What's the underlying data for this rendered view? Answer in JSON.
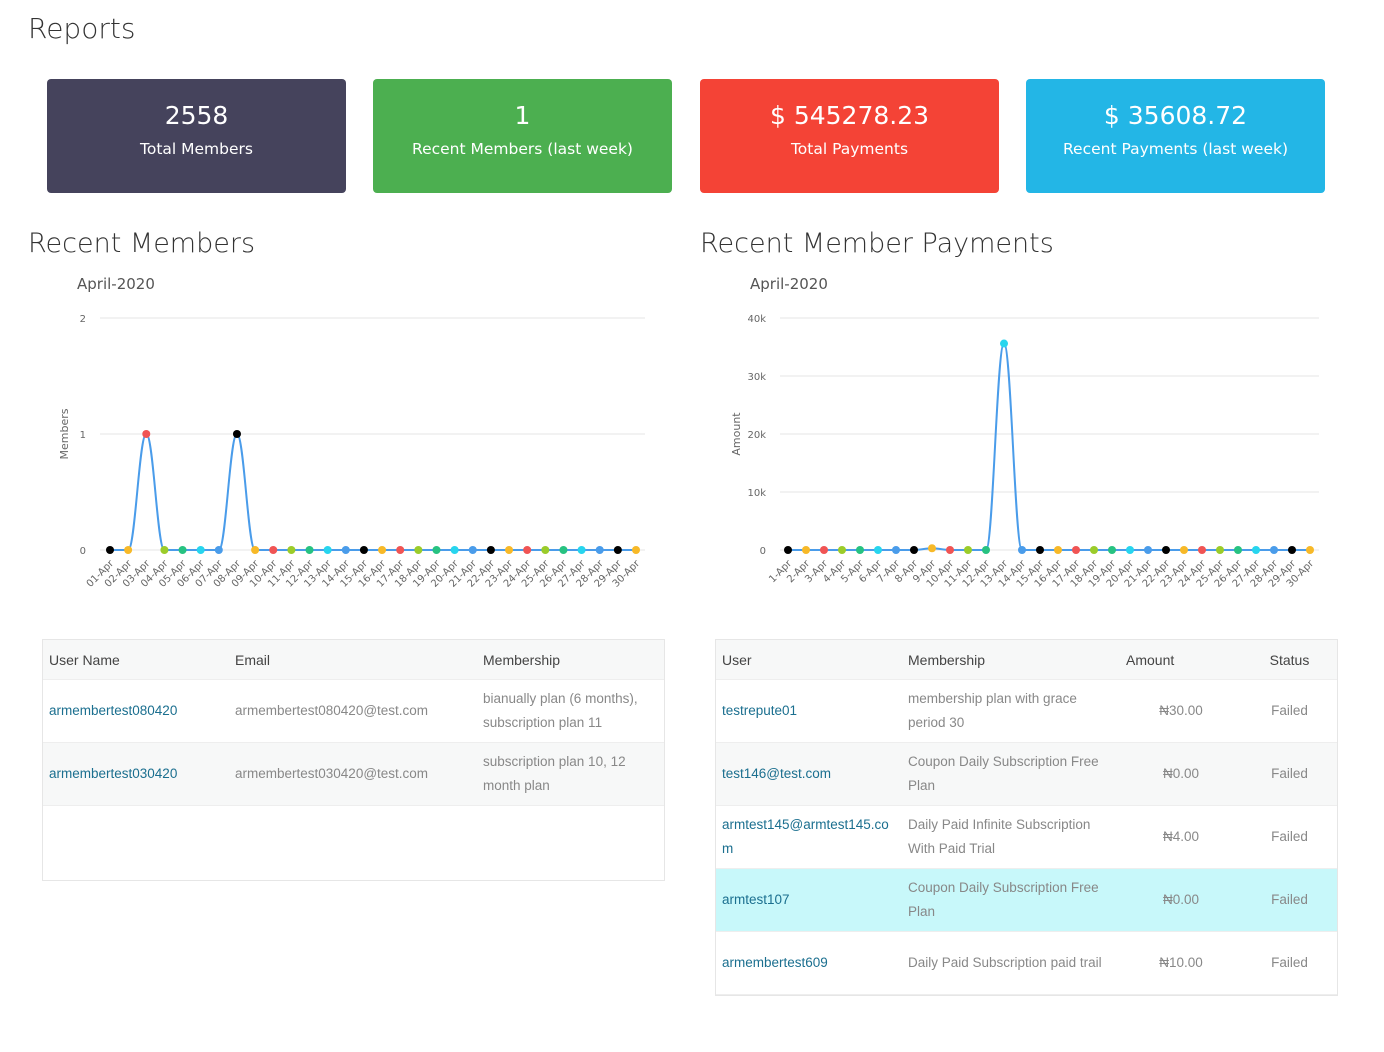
{
  "page": {
    "title": "Reports"
  },
  "cards": [
    {
      "value": "2558",
      "label": "Total Members",
      "color": "#45435c"
    },
    {
      "value": "1",
      "label": "Recent Members (last week)",
      "color": "#4caf50"
    },
    {
      "value": "$ 545278.23",
      "label": "Total Payments",
      "color": "#f44336"
    },
    {
      "value": "$ 35608.72",
      "label": "Recent Payments (last week)",
      "color": "#23b6e6"
    }
  ],
  "members_section": {
    "heading": "Recent Members",
    "table": {
      "headers": [
        "User Name",
        "Email",
        "Membership"
      ],
      "rows": [
        {
          "user": "armembertest080420",
          "email": "armembertest080420@test.com",
          "membership": "bianually plan (6 months), subscription plan 11"
        },
        {
          "user": "armembertest030420",
          "email": "armembertest030420@test.com",
          "membership": "subscription plan 10, 12 month plan"
        }
      ]
    }
  },
  "payments_section": {
    "heading": "Recent Member Payments",
    "table": {
      "headers": [
        "User",
        "Membership",
        "Amount",
        "Status"
      ],
      "rows": [
        {
          "user": "testrepute01",
          "membership": "membership plan with grace period 30",
          "amount": "₦30.00",
          "status": "Failed"
        },
        {
          "user": "test146@test.com",
          "membership": "Coupon Daily Subscription Free Plan",
          "amount": "₦0.00",
          "status": "Failed"
        },
        {
          "user": "armtest145@armtest145.com",
          "membership": "Daily Paid Infinite Subscription With Paid Trial",
          "amount": "₦4.00",
          "status": "Failed"
        },
        {
          "user": "armtest107",
          "membership": "Coupon Daily Subscription Free Plan",
          "amount": "₦0.00",
          "status": "Failed"
        },
        {
          "user": "armembertest609",
          "membership": "Daily Paid Subscription paid trail",
          "amount": "₦10.00",
          "status": "Failed"
        }
      ]
    }
  },
  "chart_data": [
    {
      "type": "line",
      "title": "April-2020",
      "ylabel": "Members",
      "xlabel": "",
      "ylim": [
        0,
        2
      ],
      "yticks": [
        "0",
        "1",
        "2"
      ],
      "grid": true,
      "categories": [
        "01-Apr",
        "02-Apr",
        "03-Apr",
        "04-Apr",
        "05-Apr",
        "06-Apr",
        "07-Apr",
        "08-Apr",
        "09-Apr",
        "10-Apr",
        "11-Apr",
        "12-Apr",
        "13-Apr",
        "14-Apr",
        "15-Apr",
        "16-Apr",
        "17-Apr",
        "18-Apr",
        "19-Apr",
        "20-Apr",
        "21-Apr",
        "22-Apr",
        "23-Apr",
        "24-Apr",
        "25-Apr",
        "26-Apr",
        "27-Apr",
        "28-Apr",
        "29-Apr",
        "30-Apr"
      ],
      "values": [
        0,
        0,
        1,
        0,
        0,
        0,
        0,
        1,
        0,
        0,
        0,
        0,
        0,
        0,
        0,
        0,
        0,
        0,
        0,
        0,
        0,
        0,
        0,
        0,
        0,
        0,
        0,
        0,
        0,
        0
      ],
      "line_color": "#4a9cea",
      "point_colors": [
        "#000000",
        "#f7b928",
        "#f05454",
        "#9bcc2a",
        "#27c281",
        "#27d5ee",
        "#4a9cea"
      ]
    },
    {
      "type": "line",
      "title": "April-2020",
      "ylabel": "Amount",
      "xlabel": "",
      "ylim": [
        0,
        40000
      ],
      "yticks": [
        "0",
        "10k",
        "20k",
        "30k",
        "40k"
      ],
      "grid": true,
      "categories": [
        "1-Apr",
        "2-Apr",
        "3-Apr",
        "4-Apr",
        "5-Apr",
        "6-Apr",
        "7-Apr",
        "8-Apr",
        "9-Apr",
        "10-Apr",
        "11-Apr",
        "12-Apr",
        "13-Apr",
        "14-Apr",
        "15-Apr",
        "16-Apr",
        "17-Apr",
        "18-Apr",
        "19-Apr",
        "20-Apr",
        "21-Apr",
        "22-Apr",
        "23-Apr",
        "24-Apr",
        "25-Apr",
        "26-Apr",
        "27-Apr",
        "28-Apr",
        "29-Apr",
        "30-Apr"
      ],
      "values": [
        0,
        0,
        0,
        0,
        0,
        0,
        0,
        0,
        300,
        0,
        0,
        0,
        35600,
        0,
        0,
        0,
        0,
        0,
        0,
        0,
        0,
        0,
        0,
        0,
        0,
        0,
        0,
        0,
        0,
        0
      ],
      "line_color": "#4a9cea",
      "point_colors": [
        "#000000",
        "#f7b928",
        "#f05454",
        "#9bcc2a",
        "#27c281",
        "#27d5ee",
        "#4a9cea"
      ]
    }
  ]
}
